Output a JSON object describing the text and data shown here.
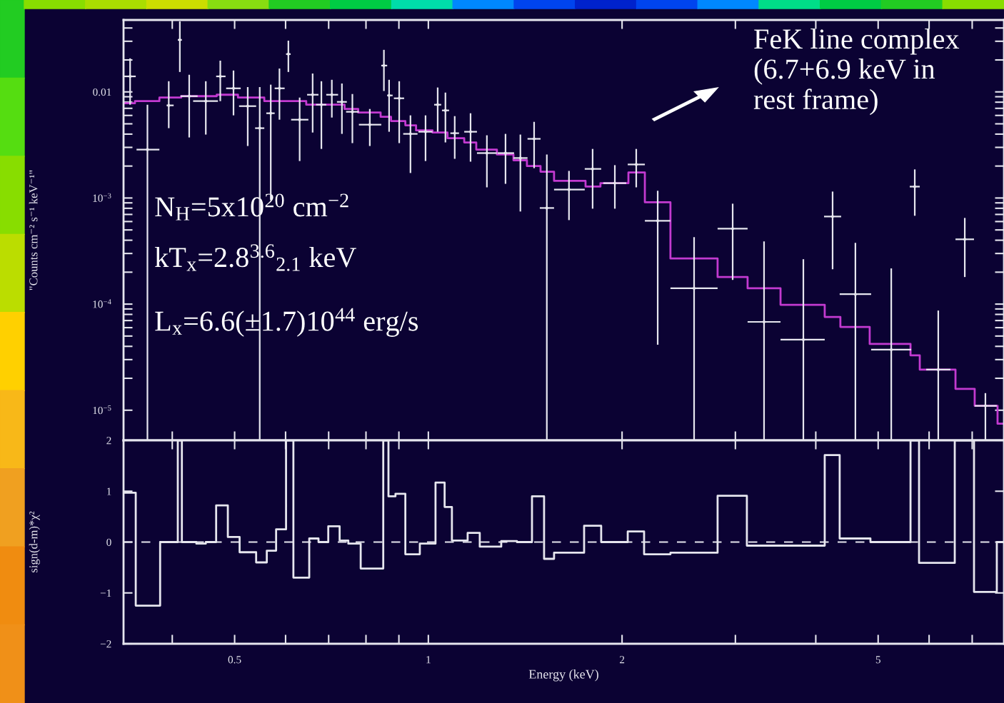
{
  "chart_data": [
    {
      "type": "scatter",
      "ylabel": "\"Counts cm⁻² s⁻¹ keV⁻¹\"",
      "log": "xy",
      "marker": "none",
      "legend": false,
      "grid": false,
      "tick_labels": "y",
      "xlim": [
        0.336,
        7.844
      ],
      "ylim": [
        5.2e-06,
        0.0476
      ],
      "xticks": [
        {
          "value": 0.4,
          "label": null
        },
        0.5,
        {
          "value": 0.6,
          "label": null
        },
        {
          "value": 0.7,
          "label": null
        },
        {
          "value": 0.8,
          "label": null
        },
        {
          "value": 0.9,
          "label": null
        },
        1,
        2,
        {
          "value": 3,
          "label": null
        },
        {
          "value": 4,
          "label": null
        },
        5,
        {
          "value": 6,
          "label": null
        },
        {
          "value": 7,
          "label": null
        }
      ],
      "yticks": [
        {
          "value": 1e-05,
          "label": "10$^{−5}$"
        },
        {
          "value": 2e-05,
          "label": null
        },
        {
          "value": 3e-05,
          "label": null
        },
        {
          "value": 4e-05,
          "label": null
        },
        {
          "value": 5e-05,
          "label": null
        },
        {
          "value": 6e-05,
          "label": null
        },
        {
          "value": 7e-05,
          "label": null
        },
        {
          "value": 8e-05,
          "label": null
        },
        {
          "value": 9e-05,
          "label": null
        },
        {
          "value": 0.0001,
          "label": "10$^{−4}$"
        },
        {
          "value": 0.0002,
          "label": null
        },
        {
          "value": 0.0003,
          "label": null
        },
        {
          "value": 0.0004,
          "label": null
        },
        {
          "value": 0.0005,
          "label": null
        },
        {
          "value": 0.0006,
          "label": null
        },
        {
          "value": 0.0007,
          "label": null
        },
        {
          "value": 0.0008,
          "label": null
        },
        {
          "value": 0.0009,
          "label": null
        },
        {
          "value": 0.001,
          "label": "10$^{−3}$"
        },
        {
          "value": 0.002,
          "label": null
        },
        {
          "value": 0.003,
          "label": null
        },
        {
          "value": 0.004,
          "label": null
        },
        {
          "value": 0.005,
          "label": null
        },
        {
          "value": 0.006,
          "label": null
        },
        {
          "value": 0.007,
          "label": null
        },
        {
          "value": 0.008,
          "label": null
        },
        {
          "value": 0.009,
          "label": null
        },
        0.01,
        {
          "value": 0.02,
          "label": null
        },
        {
          "value": 0.03,
          "label": null
        },
        {
          "value": 0.04,
          "label": null
        }
      ],
      "annotations": [
        "N$_{H}$=5x10$^{20}$ cm$^{−2}$",
        "kT$_{x}$=2.8$^{3.6}$$_{2.1}$ keV",
        "L$_{x}$=6.6(±1.7)10$^{44}$ erg/s",
        "FeK line complex\n(6.7+6.9 keV in\nrest frame)"
      ],
      "series": [
        {
          "type": "scatter",
          "color": "#e6e6ee",
          "x": [
            0.344,
            0.366,
            0.411,
            0.395,
            0.425,
            0.451,
            0.475,
            0.498,
            0.524,
            0.547,
            0.569,
            0.587,
            0.606,
            0.631,
            0.661,
            0.682,
            0.708,
            0.734,
            0.762,
            0.811,
            0.853,
            0.869,
            0.901,
            0.938,
            0.99,
            1.034,
            1.063,
            1.099,
            1.163,
            1.233,
            1.318,
            1.39,
            1.46,
            1.528,
            1.654,
            1.8,
            1.949,
            2.104,
            2.272,
            2.588,
            2.971,
            3.324,
            3.826,
            4.248,
            4.609,
            5.24,
            5.7,
            6.2,
            6.817,
            7.339
          ],
          "values": [
            0.014,
            0.00286,
            0.0309,
            0.00746,
            0.00911,
            0.00818,
            0.014,
            0.0108,
            0.00734,
            0.00455,
            0.00629,
            0.0108,
            0.0227,
            0.00547,
            0.0094,
            0.00757,
            0.0094,
            0.00805,
            0.00649,
            0.00491,
            0.0177,
            0.00926,
            0.0087,
            0.00402,
            0.00421,
            0.00757,
            0.00669,
            0.00408,
            0.00421,
            0.00265,
            0.00265,
            0.00238,
            0.00361,
            0.000805,
            0.0012,
            0.00188,
            0.00138,
            0.00207,
            0.00061,
            0.000141,
            0.000514,
            6.8e-05,
            4.62e-05,
            0.000669,
            0.000124,
            3.72e-05,
            0.00128,
            2.41e-05,
            0.000408,
            1.1e-05
          ],
          "xerrors": [
            [
              0.336,
              0.351
            ],
            [
              0.352,
              0.382
            ],
            [
              0.408,
              0.414
            ],
            [
              0.392,
              0.402
            ],
            [
              0.412,
              0.438
            ],
            [
              0.431,
              0.471
            ],
            [
              0.468,
              0.484
            ],
            [
              0.485,
              0.511
            ],
            [
              0.508,
              0.54
            ],
            [
              0.538,
              0.556
            ],
            [
              0.56,
              0.577
            ],
            [
              0.577,
              0.598
            ],
            [
              0.601,
              0.611
            ],
            [
              0.612,
              0.651
            ],
            [
              0.648,
              0.675
            ],
            [
              0.669,
              0.694
            ],
            [
              0.694,
              0.724
            ],
            [
              0.721,
              0.747
            ],
            [
              0.745,
              0.78
            ],
            [
              0.78,
              0.845
            ],
            [
              0.845,
              0.863
            ],
            [
              0.863,
              0.88
            ],
            [
              0.884,
              0.917
            ],
            [
              0.914,
              0.962
            ],
            [
              0.965,
              1.015
            ],
            [
              1.021,
              1.047
            ],
            [
              1.05,
              1.077
            ],
            [
              1.082,
              1.116
            ],
            [
              1.137,
              1.19
            ],
            [
              1.19,
              1.278
            ],
            [
              1.281,
              1.359
            ],
            [
              1.356,
              1.426
            ],
            [
              1.426,
              1.494
            ],
            [
              1.49,
              1.568
            ],
            [
              1.568,
              1.75
            ],
            [
              1.75,
              1.856
            ],
            [
              1.87,
              2.03
            ],
            [
              2.041,
              2.17
            ],
            [
              2.17,
              2.378
            ],
            [
              2.378,
              2.815
            ],
            [
              2.815,
              3.134
            ],
            [
              3.134,
              3.526
            ],
            [
              3.526,
              4.13
            ],
            [
              4.12,
              4.38
            ],
            [
              4.357,
              4.876
            ],
            [
              4.876,
              5.628
            ],
            [
              5.598,
              5.803
            ],
            [
              5.938,
              6.475
            ],
            [
              6.594,
              7.046
            ],
            [
              7.063,
              7.645
            ]
          ],
          "errors": [
            [
              0.00757,
              0.0207
            ],
            [
              5.2e-06,
              0.00757
            ],
            [
              0.0154,
              0.0462
            ],
            [
              0.00455,
              0.0126
            ],
            [
              0.00372,
              0.0145
            ],
            [
              0.00396,
              0.0126
            ],
            [
              0.00818,
              0.0197
            ],
            [
              0.00601,
              0.0159
            ],
            [
              0.00309,
              0.0111
            ],
            [
              5.2e-06,
              0.0111
            ],
            [
              0.000954,
              0.0117
            ],
            [
              0.00547,
              0.0166
            ],
            [
              0.0154,
              0.0304
            ],
            [
              0.00223,
              0.00884
            ],
            [
              0.00414,
              0.0149
            ],
            [
              0.0029,
              0.0126
            ],
            [
              0.00573,
              0.013
            ],
            [
              0.00402,
              0.012
            ],
            [
              0.00329,
              0.00955
            ],
            [
              0.00309,
              0.0069
            ],
            [
              0.0102,
              0.0249
            ],
            [
              0.00421,
              0.013
            ],
            [
              0.00329,
              0.0126
            ],
            [
              0.00172,
              0.00601
            ],
            [
              0.00223,
              0.00601
            ],
            [
              0.00421,
              0.011
            ],
            [
              0.00334,
              0.00985
            ],
            [
              0.00234,
              0.00591
            ],
            [
              0.0022,
              0.00629
            ],
            [
              0.00126,
              0.0039
            ],
            [
              0.00136,
              0.00402
            ],
            [
              0.000746,
              0.00396
            ],
            [
              0.00191,
              0.00522
            ],
            [
              5.2e-06,
              0.00257
            ],
            [
              0.000619,
              0.0018
            ],
            [
              0.000793,
              0.0029
            ],
            [
              0.000793,
              0.00204
            ],
            [
              0.00126,
              0.0029
            ],
            [
              4.14e-05,
              0.00117
            ],
            [
              5.2e-06,
              0.000427
            ],
            [
              0.000169,
              0.000884
            ],
            [
              5.2e-06,
              0.00039
            ],
            [
              5.2e-06,
              0.000265
            ],
            [
              0.000213,
              0.00115
            ],
            [
              5.2e-06,
              0.000378
            ],
            [
              5.2e-06,
              0.000217
            ],
            [
              0.00068,
              0.00186
            ],
            [
              5.2e-06,
              8.7e-05
            ],
            [
              0.00018,
              0.000649
            ],
            [
              5.2e-06,
              1.45e-05
            ]
          ]
        },
        {
          "type": "step",
          "color": "#c23ad0",
          "x": [
            0.336,
            0.35,
            0.382,
            0.413,
            0.469,
            0.506,
            0.556,
            0.646,
            0.741,
            0.778,
            0.843,
            0.875,
            0.921,
            0.957,
            1.015,
            1.071,
            1.137,
            1.187,
            1.278,
            1.356,
            1.423,
            1.494,
            1.568,
            1.755,
            1.851,
            2.046,
            2.17,
            2.378,
            2.815,
            3.134,
            3.526,
            4.13,
            4.368,
            4.851,
            5.614,
            5.803,
            6.594,
            7.063,
            7.665,
            7.844
          ],
          "values": [
            0.00781,
            0.00818,
            0.00884,
            0.00911,
            0.0094,
            0.00884,
            0.00818,
            0.00757,
            0.0069,
            0.00639,
            0.00582,
            0.00531,
            0.00484,
            0.00434,
            0.00414,
            0.00366,
            0.00334,
            0.00286,
            0.00257,
            0.00227,
            0.002,
            0.00177,
            0.00145,
            0.00128,
            0.00138,
            0.00174,
            0.000911,
            0.000269,
            0.00018,
            0.000141,
            9.85e-05,
            7.57e-05,
            6.1e-05,
            4.21e-05,
            3.29e-05,
            2.41e-05,
            1.59e-05,
            1.1e-05,
            7.46e-06,
            7.46e-06
          ]
        }
      ]
    },
    {
      "type": "step",
      "xlabel": "Energy (keV)",
      "ylabel": "sign(d-m)*χ²",
      "log": "x",
      "legend": false,
      "grid": false,
      "xlim": [
        0.336,
        7.844
      ],
      "ylim": [
        -2,
        2
      ],
      "xticks": [
        {
          "value": 0.4,
          "label": null
        },
        0.5,
        {
          "value": 0.6,
          "label": null
        },
        {
          "value": 0.7,
          "label": null
        },
        {
          "value": 0.8,
          "label": null
        },
        {
          "value": 0.9,
          "label": null
        },
        1,
        2,
        {
          "value": 3,
          "label": null
        },
        {
          "value": 4,
          "label": null
        },
        5,
        {
          "value": 6,
          "label": null
        },
        {
          "value": 7,
          "label": null
        }
      ],
      "yticks": [
        {
          "value": -2,
          "label": "−2"
        },
        {
          "value": -1,
          "label": "−1"
        },
        0,
        1,
        2
      ],
      "ref_lines": [
        {
          "axis": "y",
          "value": 0,
          "line_style": "dashed",
          "color": "#e6e6ee"
        }
      ],
      "series": [
        {
          "color": "#e6e6ee",
          "x": [
            0.337,
            0.351,
            0.383,
            0.408,
            0.414,
            0.436,
            0.451,
            0.468,
            0.488,
            0.509,
            0.54,
            0.561,
            0.58,
            0.601,
            0.617,
            0.653,
            0.675,
            0.699,
            0.728,
            0.751,
            0.785,
            0.851,
            0.867,
            0.889,
            0.921,
            0.97,
            1.026,
            1.06,
            1.088,
            1.151,
            1.202,
            1.298,
            1.373,
            1.449,
            1.513,
            1.568,
            1.746,
            1.856,
            2.041,
            2.164,
            2.378,
            2.815,
            3.126,
            4.13,
            4.357,
            4.864,
            5.614,
            5.788,
            6.577,
            7.046,
            7.645,
            7.844
          ],
          "values": [
            0.97,
            -1.25,
            0,
            2,
            0,
            -0.03,
            0,
            0.72,
            0.1,
            -0.2,
            -0.4,
            -0.17,
            0.25,
            2,
            -0.7,
            0.07,
            0,
            0.31,
            0.03,
            -0.03,
            -0.52,
            2,
            0.9,
            0.95,
            -0.24,
            -0.03,
            1.17,
            0.69,
            0.03,
            0.18,
            -0.09,
            0.02,
            0,
            0.9,
            -0.33,
            -0.21,
            0.32,
            0,
            0.21,
            -0.24,
            -0.21,
            0.91,
            -0.07,
            1.71,
            0.07,
            0,
            2,
            -0.41,
            2,
            -0.98,
            0,
            0
          ]
        }
      ]
    }
  ]
}
